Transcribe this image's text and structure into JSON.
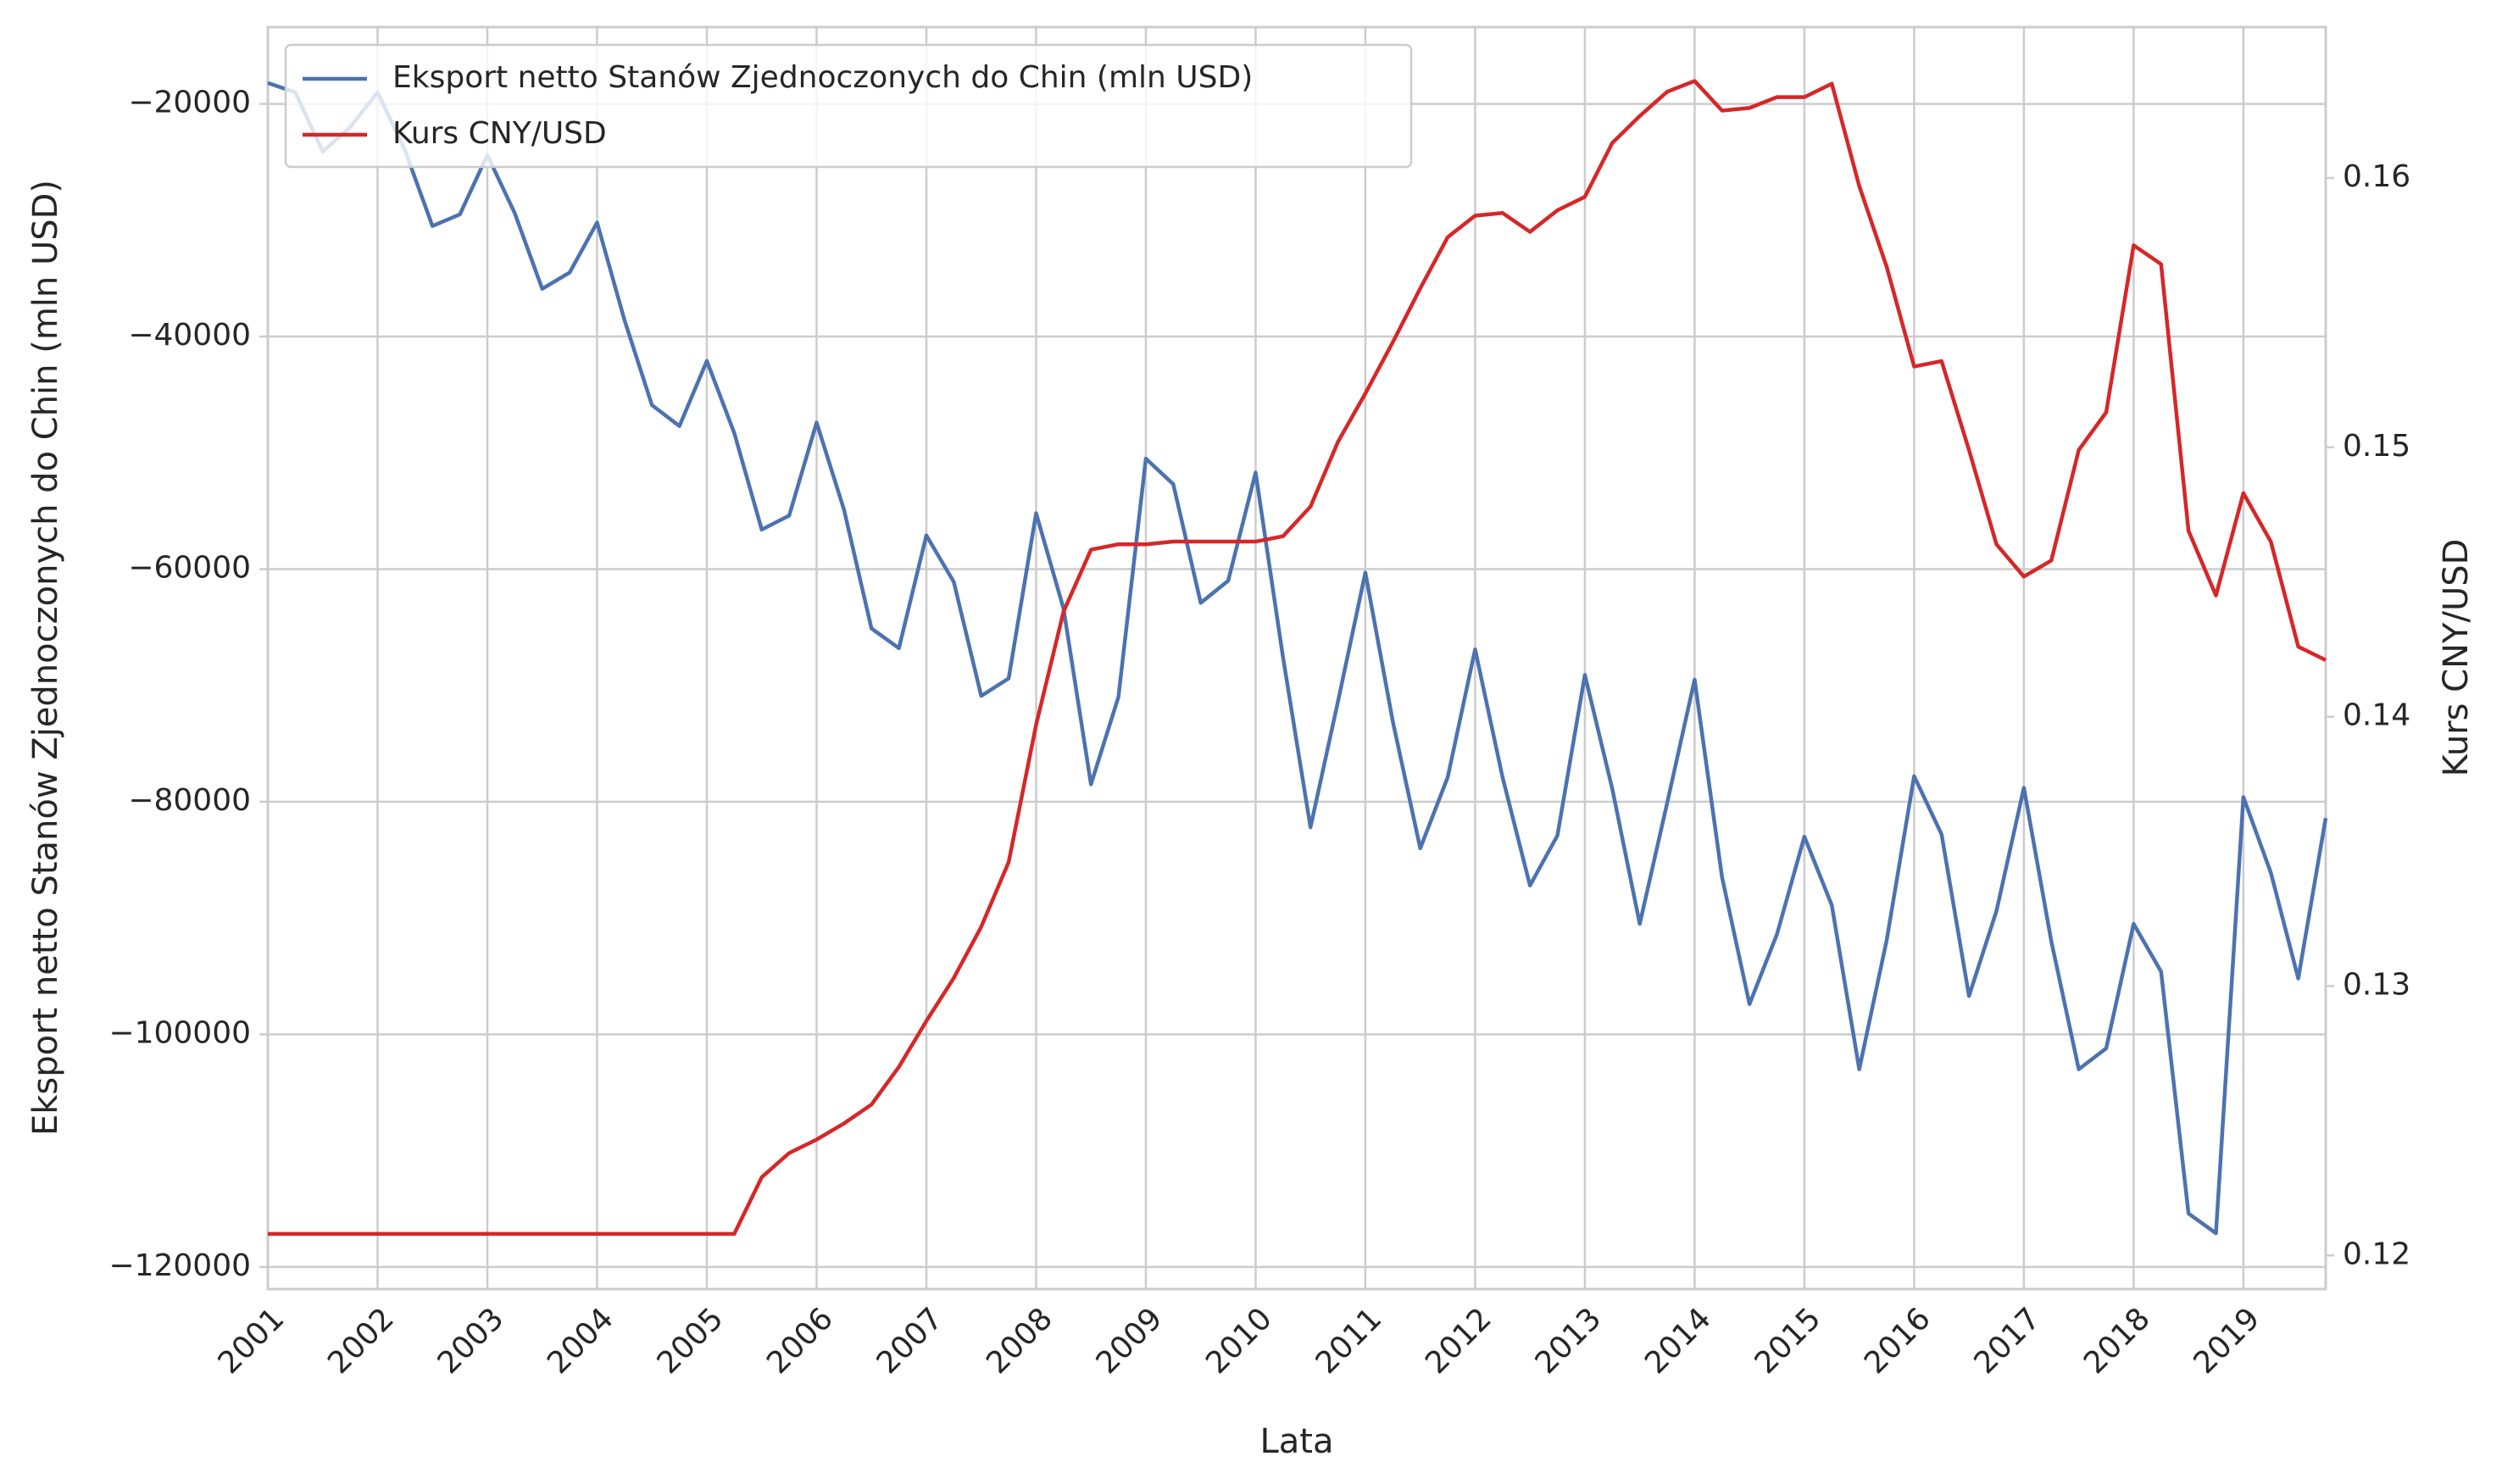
{
  "chart_data": {
    "type": "line",
    "x_label": "Lata",
    "y_label": "Eksport netto Stanów Zjednoczonych do Chin (mln USD)",
    "y2_label": "Kurs CNY/USD",
    "x": [
      2001,
      2001.25,
      2001.5,
      2001.75,
      2002,
      2002.25,
      2002.5,
      2002.75,
      2003,
      2003.25,
      2003.5,
      2003.75,
      2004,
      2004.25,
      2004.5,
      2004.75,
      2005,
      2005.25,
      2005.5,
      2005.75,
      2006,
      2006.25,
      2006.5,
      2006.75,
      2007,
      2007.25,
      2007.5,
      2007.75,
      2008,
      2008.25,
      2008.5,
      2008.75,
      2009,
      2009.25,
      2009.5,
      2009.75,
      2010,
      2010.25,
      2010.5,
      2010.75,
      2011,
      2011.25,
      2011.5,
      2011.75,
      2012,
      2012.25,
      2012.5,
      2012.75,
      2013,
      2013.25,
      2013.5,
      2013.75,
      2014,
      2014.25,
      2014.5,
      2014.75,
      2015,
      2015.25,
      2015.5,
      2015.75,
      2016,
      2016.25,
      2016.5,
      2016.75,
      2017,
      2017.25,
      2017.5,
      2017.75,
      2018,
      2018.25,
      2018.5,
      2018.75,
      2019,
      2019.25,
      2019.5,
      2019.75
    ],
    "series": [
      {
        "name": "Eksport netto Stanów Zjednoczonych do Chin (mln USD)",
        "color": "#4c72b0",
        "axis": "y",
        "values": [
          -18200,
          -19000,
          -24100,
          -22000,
          -19000,
          -24000,
          -30500,
          -29500,
          -24400,
          -29400,
          -35900,
          -34500,
          -30200,
          -38600,
          -45900,
          -47700,
          -42100,
          -48300,
          -56600,
          -55400,
          -47400,
          -54900,
          -65100,
          -66800,
          -57100,
          -61100,
          -70900,
          -69400,
          -55200,
          -63400,
          -78500,
          -71000,
          -50500,
          -52700,
          -62900,
          -61000,
          -51700,
          -67600,
          -82200,
          -71400,
          -60300,
          -73100,
          -84000,
          -77900,
          -66900,
          -77900,
          -87200,
          -82900,
          -69100,
          -78900,
          -90500,
          -80100,
          -69500,
          -86500,
          -97400,
          -91400,
          -83000,
          -88900,
          -103000,
          -91900,
          -77800,
          -82800,
          -96700,
          -89400,
          -78800,
          -92000,
          -103000,
          -101200,
          -90500,
          -94600,
          -115400,
          -117100,
          -79600,
          -86100,
          -95200,
          -81400
        ]
      },
      {
        "name": "Kurs CNY/USD",
        "color": "#d62728",
        "axis": "y2",
        "values": [
          0.1208,
          0.1208,
          0.1208,
          0.1208,
          0.1208,
          0.1208,
          0.1208,
          0.1208,
          0.1208,
          0.1208,
          0.1208,
          0.1208,
          0.1208,
          0.1208,
          0.1208,
          0.1208,
          0.1208,
          0.1208,
          0.1229,
          0.1238,
          0.1243,
          0.1249,
          0.1256,
          0.127,
          0.1287,
          0.1303,
          0.1322,
          0.1346,
          0.1397,
          0.1439,
          0.1462,
          0.1464,
          0.1464,
          0.1465,
          0.1465,
          0.1465,
          0.1465,
          0.1467,
          0.1478,
          0.1502,
          0.152,
          0.1539,
          0.1559,
          0.1578,
          0.1586,
          0.1587,
          0.158,
          0.1588,
          0.1593,
          0.1613,
          0.1623,
          0.1632,
          0.1636,
          0.1625,
          0.1626,
          0.163,
          0.163,
          0.1635,
          0.1597,
          0.1567,
          0.153,
          0.1532,
          0.1499,
          0.1464,
          0.1452,
          0.1458,
          0.1499,
          0.1513,
          0.1575,
          0.1568,
          0.1469,
          0.1445,
          0.1483,
          0.1465,
          0.1426,
          0.1421
        ]
      }
    ],
    "xlim": [
      2001,
      2019.75
    ],
    "xticks": [
      2001,
      2002,
      2003,
      2004,
      2005,
      2006,
      2007,
      2008,
      2009,
      2010,
      2011,
      2012,
      2013,
      2014,
      2015,
      2016,
      2017,
      2018,
      2019
    ],
    "ylim": [
      -121900,
      -13400
    ],
    "yticks": [
      {
        "value": -120000,
        "label": "−120000"
      },
      {
        "value": -100000,
        "label": "−100000"
      },
      {
        "value": -80000,
        "label": "−80000"
      },
      {
        "value": -60000,
        "label": "−60000"
      },
      {
        "value": -40000,
        "label": "−40000"
      },
      {
        "value": -20000,
        "label": "−20000"
      }
    ],
    "y2lim": [
      0.11875,
      0.1656
    ],
    "y2ticks": [
      0.12,
      0.13,
      0.14,
      0.15,
      0.16
    ],
    "grid": true,
    "legend": "upper left"
  }
}
